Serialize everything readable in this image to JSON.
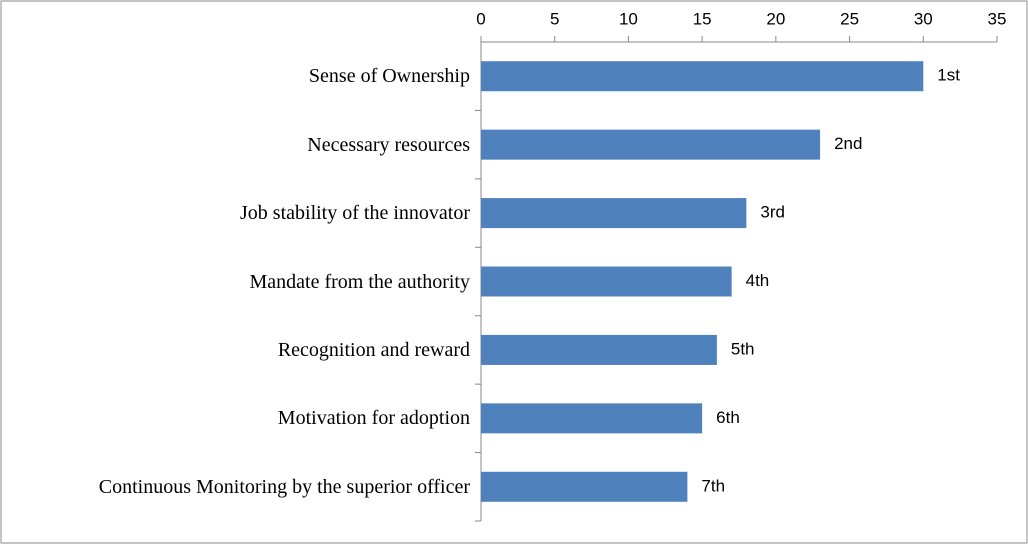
{
  "chart_data": {
    "type": "barh",
    "categories": [
      "Sense of Ownership",
      "Necessary resources",
      "Job stability of the innovator",
      "Mandate from the authority",
      "Recognition and reward",
      "Motivation for adoption",
      "Continuous Monitoring by the superior officer"
    ],
    "values": [
      30,
      23,
      18,
      17,
      16,
      15,
      14
    ],
    "annotations": [
      "1st",
      "2nd",
      "3rd",
      "4th",
      "5th",
      "6th",
      "7th"
    ],
    "color": "#4f81bd",
    "xlim": [
      0,
      35
    ],
    "xticks": [
      0,
      5,
      10,
      15,
      20,
      25,
      30,
      35
    ],
    "grid": false
  }
}
